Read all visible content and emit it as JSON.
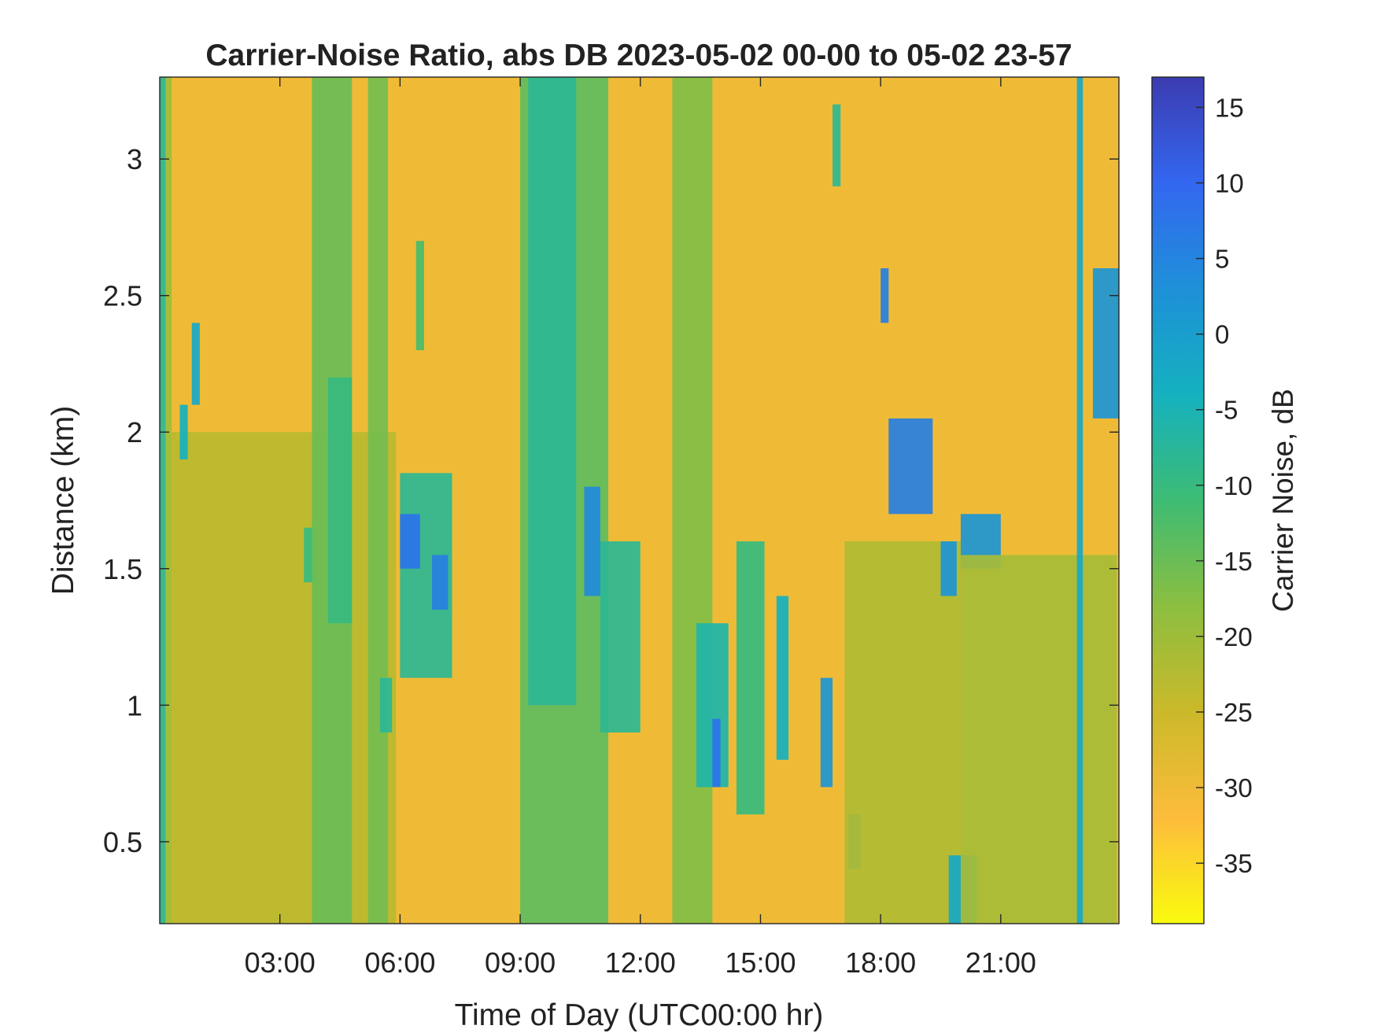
{
  "chart_data": {
    "type": "heatmap",
    "title": "Carrier-Noise Ratio, abs DB 2023-05-02 00-00 to 05-02 23-57",
    "xlabel": "Time of Day (UTC00:00 hr)",
    "ylabel": "Distance (km)",
    "colorbar_label": "Carrier Noise, dB",
    "x_unit": "hours UTC",
    "xlim": [
      0,
      23.95
    ],
    "ylim": [
      0.2,
      3.3
    ],
    "clim": [
      -39,
      17
    ],
    "colormap": "parula (reversed)",
    "colormap_stops": [
      "#f9fb0e",
      "#fdbc3c",
      "#cbb92a",
      "#8cbe40",
      "#3dbc74",
      "#15b1bf",
      "#1e90d8",
      "#3367f0",
      "#3c3bb0"
    ],
    "background_level_db": -30,
    "x_ticks": [
      {
        "value": 3,
        "label": "03:00"
      },
      {
        "value": 6,
        "label": "06:00"
      },
      {
        "value": 9,
        "label": "09:00"
      },
      {
        "value": 12,
        "label": "12:00"
      },
      {
        "value": 15,
        "label": "15:00"
      },
      {
        "value": 18,
        "label": "18:00"
      },
      {
        "value": 21,
        "label": "21:00"
      }
    ],
    "y_ticks": [
      {
        "value": 0.5,
        "label": "0.5"
      },
      {
        "value": 1,
        "label": "1"
      },
      {
        "value": 1.5,
        "label": "1.5"
      },
      {
        "value": 2,
        "label": "2"
      },
      {
        "value": 2.5,
        "label": "2.5"
      },
      {
        "value": 3,
        "label": "3"
      }
    ],
    "colorbar_ticks": [
      {
        "value": 15,
        "label": "15"
      },
      {
        "value": 10,
        "label": "10"
      },
      {
        "value": 5,
        "label": "5"
      },
      {
        "value": 0,
        "label": "0"
      },
      {
        "value": -5,
        "label": "-5"
      },
      {
        "value": -10,
        "label": "-10"
      },
      {
        "value": -15,
        "label": "-15"
      },
      {
        "value": -20,
        "label": "-20"
      },
      {
        "value": -25,
        "label": "-25"
      },
      {
        "value": -30,
        "label": "-30"
      },
      {
        "value": -35,
        "label": "-35"
      }
    ],
    "features": [
      {
        "t0": 0.0,
        "t1": 0.15,
        "d0": 0.2,
        "d1": 3.3,
        "db": -8
      },
      {
        "t0": 0.15,
        "t1": 0.3,
        "d0": 0.2,
        "d1": 3.3,
        "db": -20
      },
      {
        "t0": 0.3,
        "t1": 5.9,
        "d0": 0.2,
        "d1": 2.0,
        "db": -23
      },
      {
        "t0": 0.8,
        "t1": 1.0,
        "d0": 2.1,
        "d1": 2.4,
        "db": -2
      },
      {
        "t0": 0.5,
        "t1": 0.7,
        "d0": 1.9,
        "d1": 2.1,
        "db": -4
      },
      {
        "t0": 3.6,
        "t1": 3.9,
        "d0": 1.45,
        "d1": 1.65,
        "db": -10
      },
      {
        "t0": 3.8,
        "t1": 4.8,
        "d0": 0.2,
        "d1": 3.3,
        "db": -15
      },
      {
        "t0": 4.2,
        "t1": 4.8,
        "d0": 1.3,
        "d1": 2.2,
        "db": -10
      },
      {
        "t0": 5.2,
        "t1": 5.7,
        "d0": 0.2,
        "d1": 3.3,
        "db": -16
      },
      {
        "t0": 5.5,
        "t1": 5.8,
        "d0": 0.9,
        "d1": 1.1,
        "db": -8
      },
      {
        "t0": 6.0,
        "t1": 7.3,
        "d0": 1.1,
        "d1": 1.85,
        "db": -8
      },
      {
        "t0": 6.0,
        "t1": 6.5,
        "d0": 1.5,
        "d1": 1.7,
        "db": 8
      },
      {
        "t0": 6.8,
        "t1": 7.2,
        "d0": 1.35,
        "d1": 1.55,
        "db": 6
      },
      {
        "t0": 6.4,
        "t1": 6.6,
        "d0": 2.3,
        "d1": 2.7,
        "db": -12
      },
      {
        "t0": 9.0,
        "t1": 11.2,
        "d0": 0.2,
        "d1": 3.3,
        "db": -14
      },
      {
        "t0": 9.2,
        "t1": 10.4,
        "d0": 1.0,
        "d1": 3.3,
        "db": -8
      },
      {
        "t0": 10.6,
        "t1": 11.0,
        "d0": 1.4,
        "d1": 1.8,
        "db": 4
      },
      {
        "t0": 11.0,
        "t1": 12.0,
        "d0": 0.9,
        "d1": 1.6,
        "db": -8
      },
      {
        "t0": 12.8,
        "t1": 13.8,
        "d0": 0.2,
        "d1": 3.3,
        "db": -17
      },
      {
        "t0": 13.4,
        "t1": 14.2,
        "d0": 0.7,
        "d1": 1.3,
        "db": -6
      },
      {
        "t0": 13.8,
        "t1": 14.0,
        "d0": 0.7,
        "d1": 0.95,
        "db": 8
      },
      {
        "t0": 14.4,
        "t1": 15.1,
        "d0": 0.6,
        "d1": 1.6,
        "db": -10
      },
      {
        "t0": 15.4,
        "t1": 15.7,
        "d0": 0.8,
        "d1": 1.4,
        "db": -4
      },
      {
        "t0": 16.5,
        "t1": 16.8,
        "d0": 0.7,
        "d1": 1.1,
        "db": 2
      },
      {
        "t0": 16.8,
        "t1": 17.0,
        "d0": 2.9,
        "d1": 3.2,
        "db": -8
      },
      {
        "t0": 17.2,
        "t1": 17.5,
        "d0": 0.4,
        "d1": 0.6,
        "db": -6
      },
      {
        "t0": 17.1,
        "t1": 20.0,
        "d0": 0.2,
        "d1": 1.6,
        "db": -22
      },
      {
        "t0": 18.0,
        "t1": 18.2,
        "d0": 2.4,
        "d1": 2.6,
        "db": 6
      },
      {
        "t0": 18.2,
        "t1": 19.3,
        "d0": 1.7,
        "d1": 2.05,
        "db": 6
      },
      {
        "t0": 19.7,
        "t1": 20.4,
        "d0": 0.2,
        "d1": 0.45,
        "db": -2
      },
      {
        "t0": 19.5,
        "t1": 19.9,
        "d0": 1.4,
        "d1": 1.6,
        "db": 2
      },
      {
        "t0": 20.0,
        "t1": 21.0,
        "d0": 1.5,
        "d1": 1.7,
        "db": 2
      },
      {
        "t0": 20.0,
        "t1": 23.9,
        "d0": 0.2,
        "d1": 1.55,
        "db": -21
      },
      {
        "t0": 22.9,
        "t1": 23.05,
        "d0": 0.2,
        "d1": 3.3,
        "db": -2
      },
      {
        "t0": 23.3,
        "t1": 23.95,
        "d0": 2.05,
        "d1": 2.6,
        "db": 2
      }
    ]
  }
}
